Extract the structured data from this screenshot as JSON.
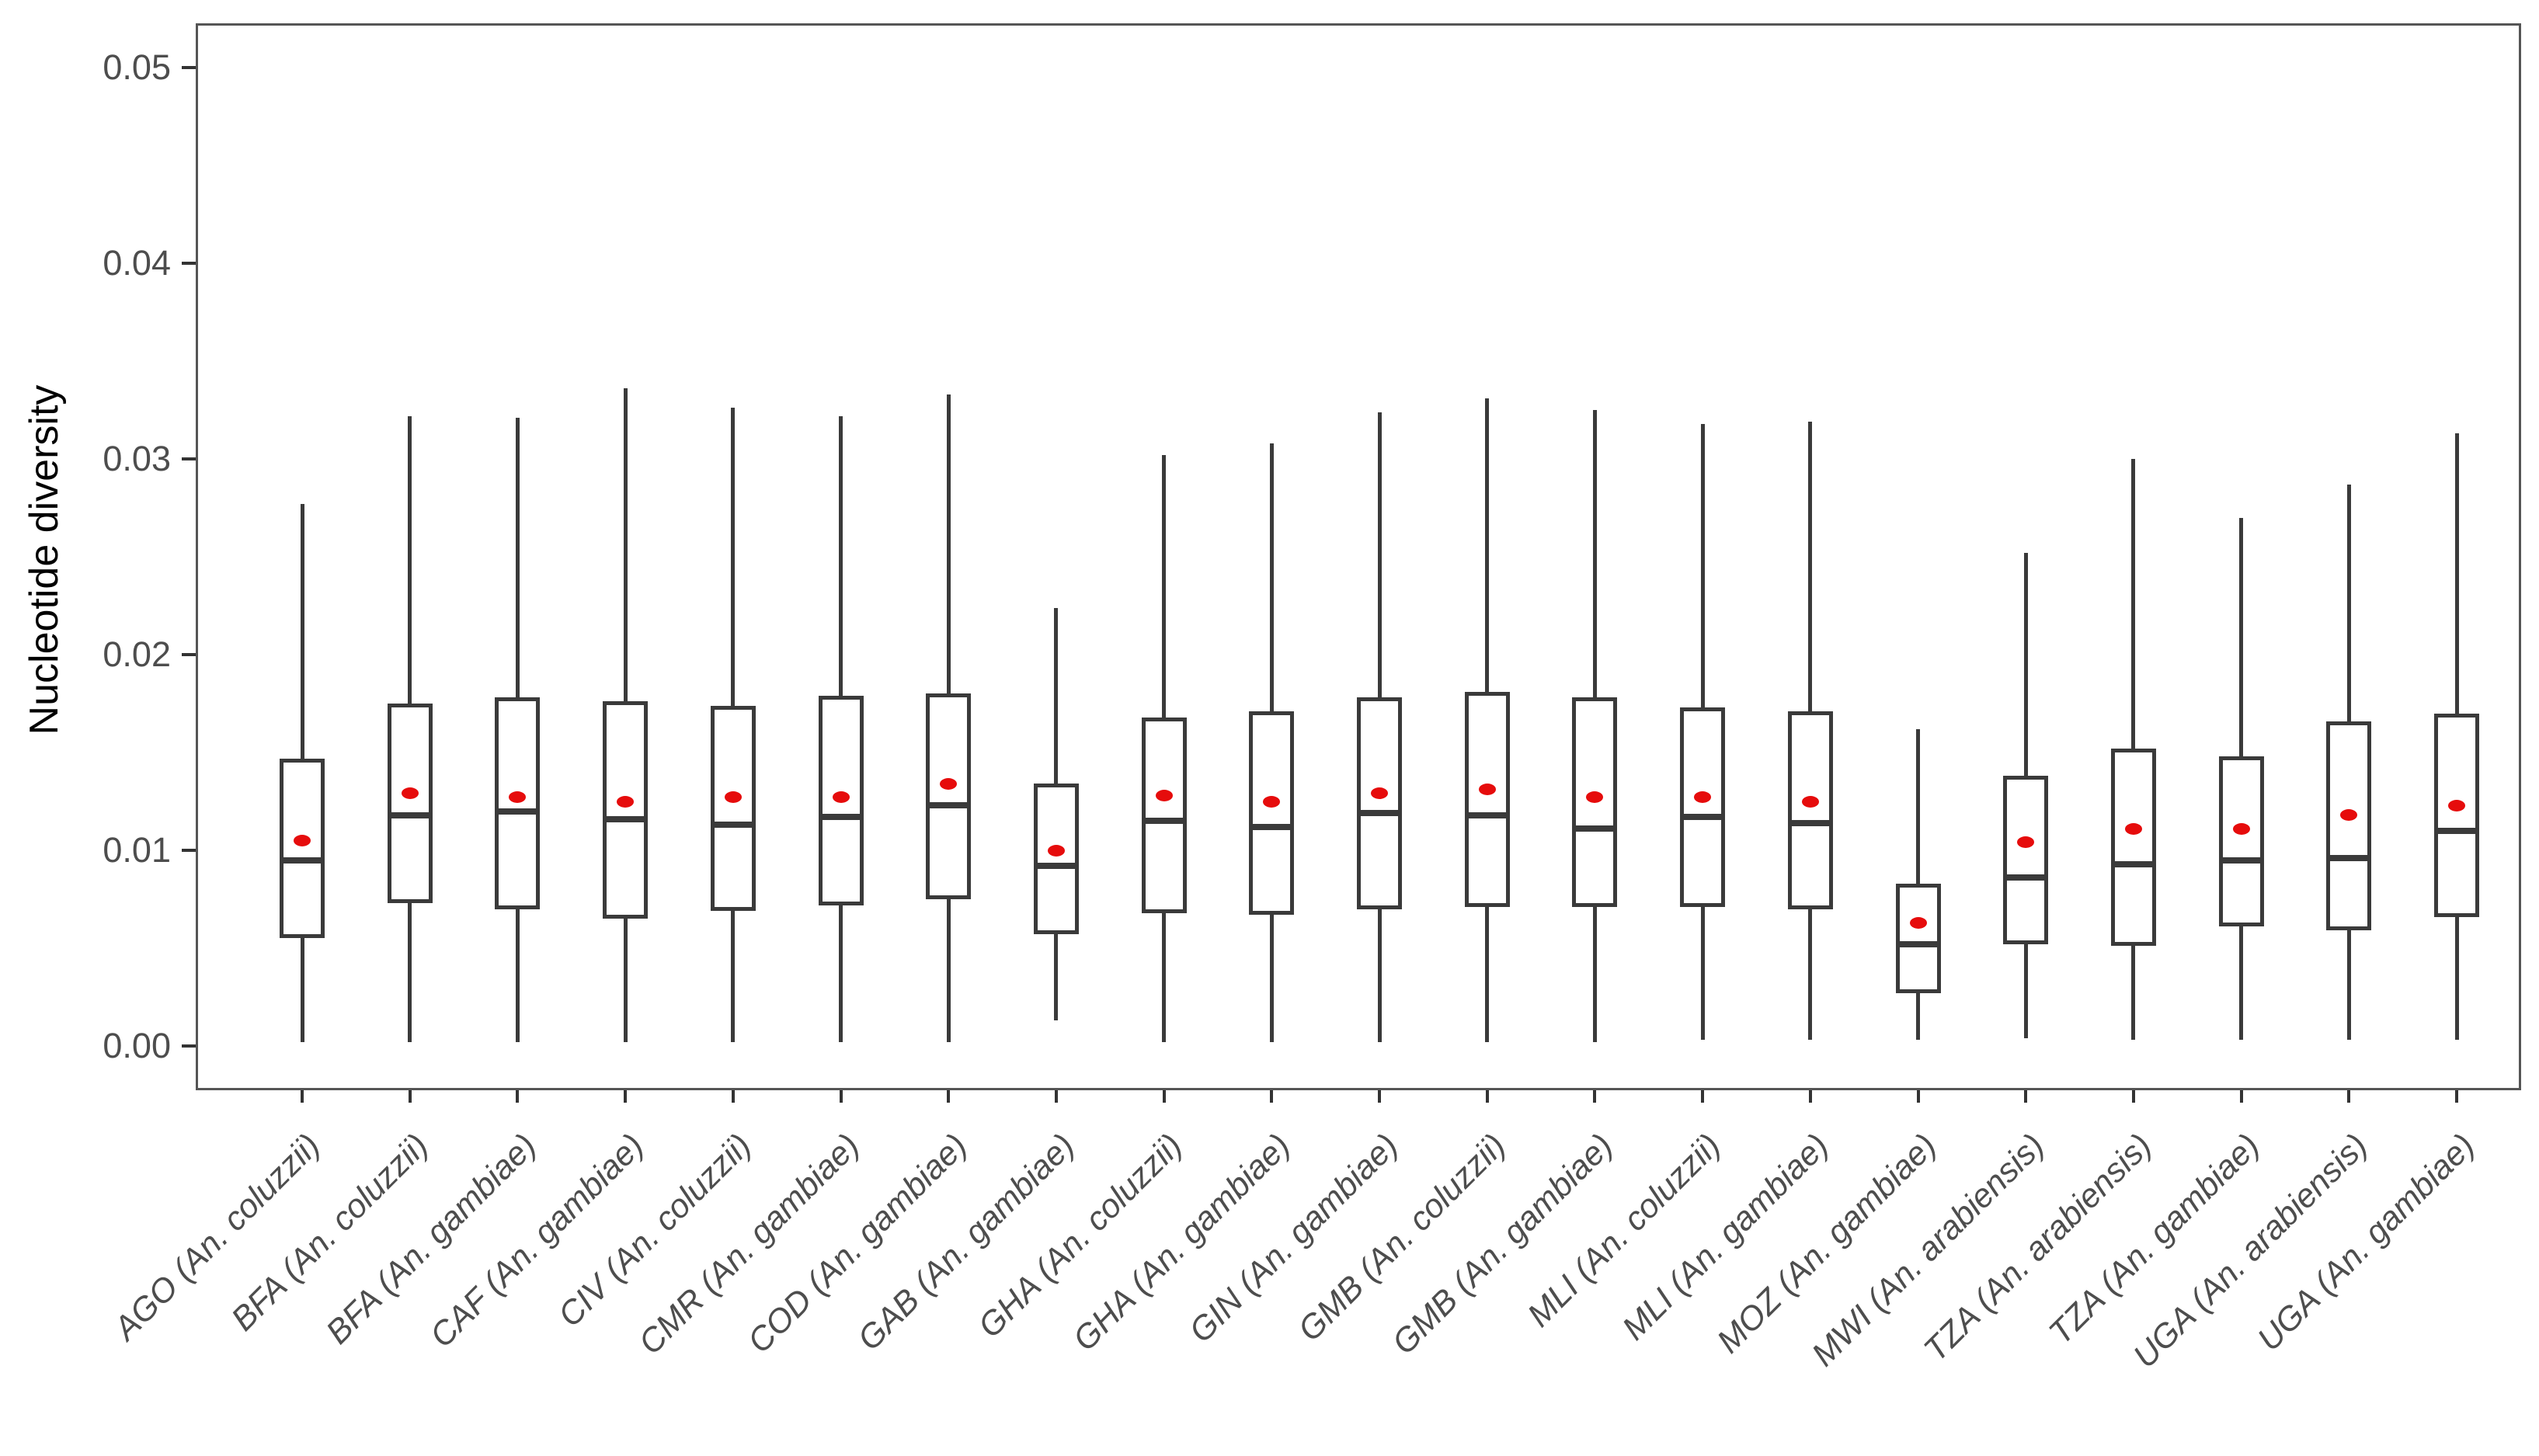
{
  "figure": {
    "ylabel": "Nucleotide diversity"
  },
  "colors": {
    "box_stroke": "#3a3a3a",
    "mean_dot": "#e60c0c",
    "axis_text": "#4d4d4d",
    "panel_border": "#555555",
    "background": "#ffffff"
  },
  "chart_data": {
    "type": "boxplot",
    "title": "",
    "xlabel": "",
    "ylabel": "Nucleotide diversity",
    "ylim": [
      -0.002,
      0.052
    ],
    "yticks": [
      "0.00",
      "0.01",
      "0.02",
      "0.03",
      "0.04",
      "0.05"
    ],
    "x_tick_angle": 45,
    "grid": false,
    "legend": "none",
    "mean_marker": "red-dot",
    "categories": [
      "AGO (An. coluzzii)",
      "BFA (An. coluzzii)",
      "BFA (An. gambiae)",
      "CAF (An. gambiae)",
      "CIV (An. coluzzii)",
      "CMR (An. gambiae)",
      "COD (An. gambiae)",
      "GAB (An. gambiae)",
      "GHA (An. coluzzii)",
      "GHA (An. gambiae)",
      "GIN (An. gambiae)",
      "GMB (An. coluzzii)",
      "GMB (An. gambiae)",
      "MLI (An. coluzzii)",
      "MLI (An. gambiae)",
      "MOZ (An. gambiae)",
      "MWI (An. arabiensis)",
      "TZA (An. arabiensis)",
      "TZA (An. gambiae)",
      "UGA (An. arabiensis)",
      "UGA (An. gambiae)"
    ],
    "series": [
      {
        "label": "AGO (An. coluzzii)",
        "whisker_low": 0.0002,
        "q1": 0.0055,
        "median": 0.0095,
        "mean": 0.0105,
        "q3": 0.0147,
        "whisker_high": 0.0277
      },
      {
        "label": "BFA (An. coluzzii)",
        "whisker_low": 0.0002,
        "q1": 0.0073,
        "median": 0.0118,
        "mean": 0.0129,
        "q3": 0.0175,
        "whisker_high": 0.0322
      },
      {
        "label": "BFA (An. gambiae)",
        "whisker_low": 0.0002,
        "q1": 0.007,
        "median": 0.012,
        "mean": 0.0127,
        "q3": 0.0178,
        "whisker_high": 0.0321
      },
      {
        "label": "CAF (An. gambiae)",
        "whisker_low": 0.0002,
        "q1": 0.0065,
        "median": 0.0116,
        "mean": 0.0125,
        "q3": 0.0176,
        "whisker_high": 0.0336
      },
      {
        "label": "CIV (An. coluzzii)",
        "whisker_low": 0.0002,
        "q1": 0.0069,
        "median": 0.0113,
        "mean": 0.0127,
        "q3": 0.0174,
        "whisker_high": 0.0326
      },
      {
        "label": "CMR (An. gambiae)",
        "whisker_low": 0.0002,
        "q1": 0.0072,
        "median": 0.0117,
        "mean": 0.0127,
        "q3": 0.0179,
        "whisker_high": 0.0322
      },
      {
        "label": "COD (An. gambiae)",
        "whisker_low": 0.0002,
        "q1": 0.0075,
        "median": 0.0123,
        "mean": 0.0134,
        "q3": 0.018,
        "whisker_high": 0.0333
      },
      {
        "label": "GAB (An. gambiae)",
        "whisker_low": 0.0013,
        "q1": 0.0057,
        "median": 0.0092,
        "mean": 0.01,
        "q3": 0.0134,
        "whisker_high": 0.0224
      },
      {
        "label": "GHA (An. coluzzii)",
        "whisker_low": 0.0002,
        "q1": 0.0068,
        "median": 0.0115,
        "mean": 0.0128,
        "q3": 0.0168,
        "whisker_high": 0.0302
      },
      {
        "label": "GHA (An. gambiae)",
        "whisker_low": 0.0002,
        "q1": 0.0067,
        "median": 0.0112,
        "mean": 0.0125,
        "q3": 0.0171,
        "whisker_high": 0.0308
      },
      {
        "label": "GIN (An. gambiae)",
        "whisker_low": 0.0002,
        "q1": 0.007,
        "median": 0.0119,
        "mean": 0.0129,
        "q3": 0.0178,
        "whisker_high": 0.0324
      },
      {
        "label": "GMB (An. coluzzii)",
        "whisker_low": 0.0002,
        "q1": 0.0071,
        "median": 0.0118,
        "mean": 0.0131,
        "q3": 0.0181,
        "whisker_high": 0.0331
      },
      {
        "label": "GMB (An. gambiae)",
        "whisker_low": 0.0002,
        "q1": 0.0071,
        "median": 0.0111,
        "mean": 0.0127,
        "q3": 0.0178,
        "whisker_high": 0.0325
      },
      {
        "label": "MLI (An. coluzzii)",
        "whisker_low": 0.0003,
        "q1": 0.0071,
        "median": 0.0117,
        "mean": 0.0127,
        "q3": 0.0173,
        "whisker_high": 0.0318
      },
      {
        "label": "MLI (An. gambiae)",
        "whisker_low": 0.0003,
        "q1": 0.007,
        "median": 0.0114,
        "mean": 0.0125,
        "q3": 0.0171,
        "whisker_high": 0.0319
      },
      {
        "label": "MOZ (An. gambiae)",
        "whisker_low": 0.0003,
        "q1": 0.0027,
        "median": 0.0052,
        "mean": 0.0063,
        "q3": 0.0083,
        "whisker_high": 0.0162
      },
      {
        "label": "MWI (An. arabiensis)",
        "whisker_low": 0.0004,
        "q1": 0.0052,
        "median": 0.0086,
        "mean": 0.0104,
        "q3": 0.0138,
        "whisker_high": 0.0252
      },
      {
        "label": "TZA (An. arabiensis)",
        "whisker_low": 0.0003,
        "q1": 0.0051,
        "median": 0.0093,
        "mean": 0.0111,
        "q3": 0.0152,
        "whisker_high": 0.03
      },
      {
        "label": "TZA (An. gambiae)",
        "whisker_low": 0.0003,
        "q1": 0.0061,
        "median": 0.0095,
        "mean": 0.0111,
        "q3": 0.0148,
        "whisker_high": 0.027
      },
      {
        "label": "UGA (An. arabiensis)",
        "whisker_low": 0.0003,
        "q1": 0.0059,
        "median": 0.0096,
        "mean": 0.0118,
        "q3": 0.0166,
        "whisker_high": 0.0287
      },
      {
        "label": "UGA (An. gambiae)",
        "whisker_low": 0.0003,
        "q1": 0.0066,
        "median": 0.011,
        "mean": 0.0123,
        "q3": 0.017,
        "whisker_high": 0.0313
      }
    ]
  }
}
